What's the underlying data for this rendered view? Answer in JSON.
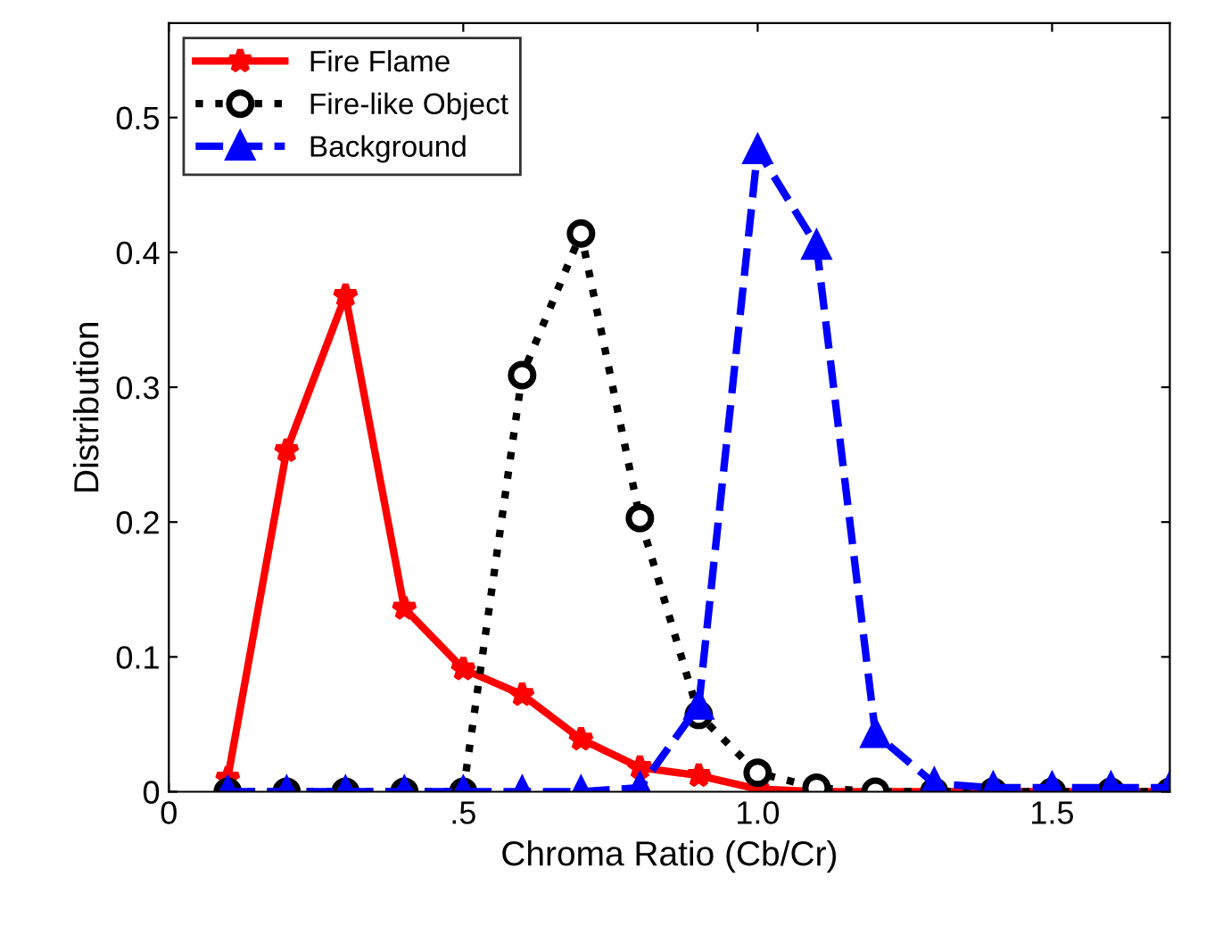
{
  "chart_data": {
    "type": "line",
    "xlabel": "Chroma Ratio (Cb/Cr)",
    "ylabel": "Distribution",
    "x": [
      0.1,
      0.2,
      0.3,
      0.4,
      0.5,
      0.6,
      0.7,
      0.8,
      0.9,
      1.0,
      1.1,
      1.2,
      1.3,
      1.4,
      1.5,
      1.6,
      1.7
    ],
    "series": [
      {
        "name": "Fire Flame",
        "color": "#ff0000",
        "marker": "star",
        "line_style": "solid",
        "values": [
          0.01,
          0.253,
          0.368,
          0.136,
          0.091,
          0.072,
          0.039,
          0.018,
          0.012,
          0.002,
          0,
          0,
          0,
          0,
          0,
          0,
          0
        ]
      },
      {
        "name": "Fire-like Object",
        "color": "#000000",
        "marker": "circle",
        "line_style": "dotted",
        "values": [
          0,
          0,
          0,
          0,
          0,
          0.309,
          0.414,
          0.203,
          0.057,
          0.014,
          0.003,
          0,
          0,
          0,
          0,
          0,
          0
        ]
      },
      {
        "name": "Background",
        "color": "#0000ff",
        "marker": "triangle",
        "line_style": "dashed",
        "values": [
          0,
          0,
          0,
          0,
          0,
          0,
          0,
          0.003,
          0.064,
          0.476,
          0.405,
          0.043,
          0.006,
          0.003,
          0.003,
          0.003,
          0.003
        ]
      }
    ],
    "xlim": [
      0,
      1.7
    ],
    "ylim": [
      0,
      0.57
    ],
    "xticks": [
      0,
      {
        "value": 0.5,
        "label": ".5"
      },
      {
        "value": 1.0,
        "label": "1.0"
      },
      1.5
    ],
    "yticks": [
      0,
      0.1,
      0.2,
      0.3,
      0.4,
      0.5
    ],
    "grid": false,
    "legend": "top left"
  }
}
